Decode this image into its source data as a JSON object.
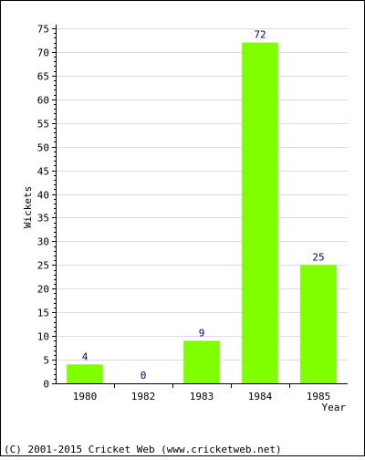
{
  "chart_data": {
    "type": "bar",
    "categories": [
      "1980",
      "1982",
      "1983",
      "1984",
      "1985"
    ],
    "values": [
      4,
      0,
      9,
      72,
      25
    ],
    "data_labels": [
      "4",
      "0",
      "9",
      "72",
      "25"
    ],
    "title": "",
    "xlabel": "Year",
    "ylabel": "Wickets",
    "ylim": [
      0,
      75
    ],
    "yticks": [
      0,
      5,
      10,
      15,
      20,
      25,
      30,
      35,
      40,
      45,
      50,
      55,
      60,
      65,
      70,
      75
    ],
    "grid": true,
    "bar_color": "#80ff00",
    "label_color": "#000080"
  },
  "footer": "(C) 2001-2015 Cricket Web (www.cricketweb.net)"
}
